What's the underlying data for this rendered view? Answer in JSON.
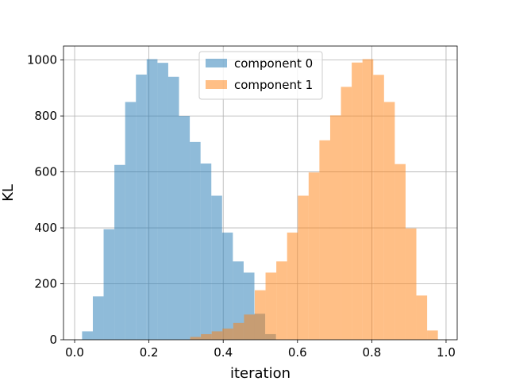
{
  "chart_data": {
    "type": "bar",
    "subtype": "overlapping-histogram",
    "title": "",
    "xlabel": "iteration",
    "ylabel": "KL",
    "xlim": [
      -0.03,
      1.03
    ],
    "ylim": [
      0,
      1050
    ],
    "x_ticks": [
      0.0,
      0.2,
      0.4,
      0.6,
      0.8,
      1.0
    ],
    "x_tick_labels": [
      "0.0",
      "0.2",
      "0.4",
      "0.6",
      "0.8",
      "1.0"
    ],
    "y_ticks": [
      0,
      200,
      400,
      600,
      800,
      1000
    ],
    "y_tick_labels": [
      "0",
      "200",
      "400",
      "600",
      "800",
      "1000"
    ],
    "grid": true,
    "legend_position": "top-center",
    "series": [
      {
        "name": "component 0",
        "color": "#1f77b4",
        "alpha": 0.5,
        "bin_edges": [
          0.02,
          0.049,
          0.078,
          0.107,
          0.136,
          0.165,
          0.194,
          0.223,
          0.252,
          0.281,
          0.31,
          0.339,
          0.368,
          0.397,
          0.426,
          0.455,
          0.484,
          0.513,
          0.542
        ],
        "counts": [
          30,
          155,
          395,
          625,
          850,
          948,
          1003,
          990,
          940,
          800,
          707,
          630,
          515,
          383,
          280,
          240,
          93,
          20
        ]
      },
      {
        "name": "component 1",
        "color": "#ff7f0e",
        "alpha": 0.5,
        "bin_edges": [
          0.311,
          0.34,
          0.369,
          0.398,
          0.427,
          0.456,
          0.485,
          0.514,
          0.543,
          0.572,
          0.601,
          0.63,
          0.659,
          0.688,
          0.717,
          0.746,
          0.775,
          0.804,
          0.833,
          0.862,
          0.891,
          0.92,
          0.949,
          0.978
        ],
        "counts": [
          10,
          20,
          30,
          40,
          60,
          90,
          177,
          240,
          280,
          383,
          515,
          598,
          713,
          802,
          904,
          991,
          1003,
          947,
          850,
          628,
          398,
          158,
          33
        ]
      }
    ]
  }
}
